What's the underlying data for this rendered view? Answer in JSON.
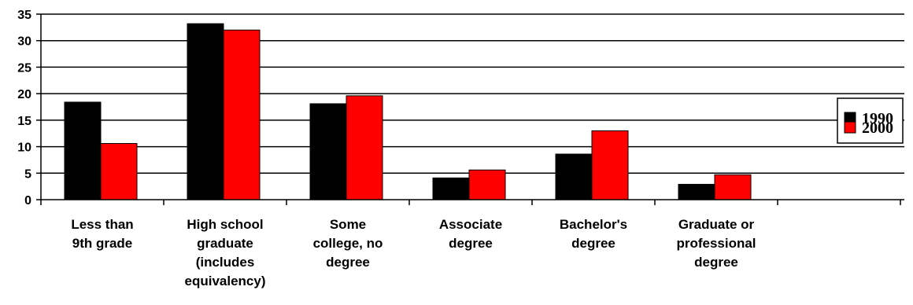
{
  "chart_data": {
    "type": "bar",
    "categories": [
      [
        "Less than",
        "9th grade"
      ],
      [
        "High school",
        "graduate",
        "(includes",
        "equivalency)"
      ],
      [
        "Some",
        "college, no",
        "degree"
      ],
      [
        "Associate",
        "degree"
      ],
      [
        "Bachelor's",
        "degree"
      ],
      [
        "Graduate or",
        "professional",
        "degree"
      ]
    ],
    "series": [
      {
        "name": "1990",
        "color": "#000000",
        "values": [
          18.4,
          33.2,
          18.1,
          4.1,
          8.6,
          2.9
        ]
      },
      {
        "name": "2000",
        "color": "#ff0000",
        "values": [
          10.6,
          32.0,
          19.6,
          5.6,
          13.0,
          4.7
        ]
      }
    ],
    "yticks": [
      0,
      5,
      10,
      15,
      20,
      25,
      30,
      35
    ],
    "ylim": [
      0,
      35
    ],
    "grid": true,
    "legend": "right",
    "title": "",
    "xlabel": "",
    "ylabel": ""
  }
}
